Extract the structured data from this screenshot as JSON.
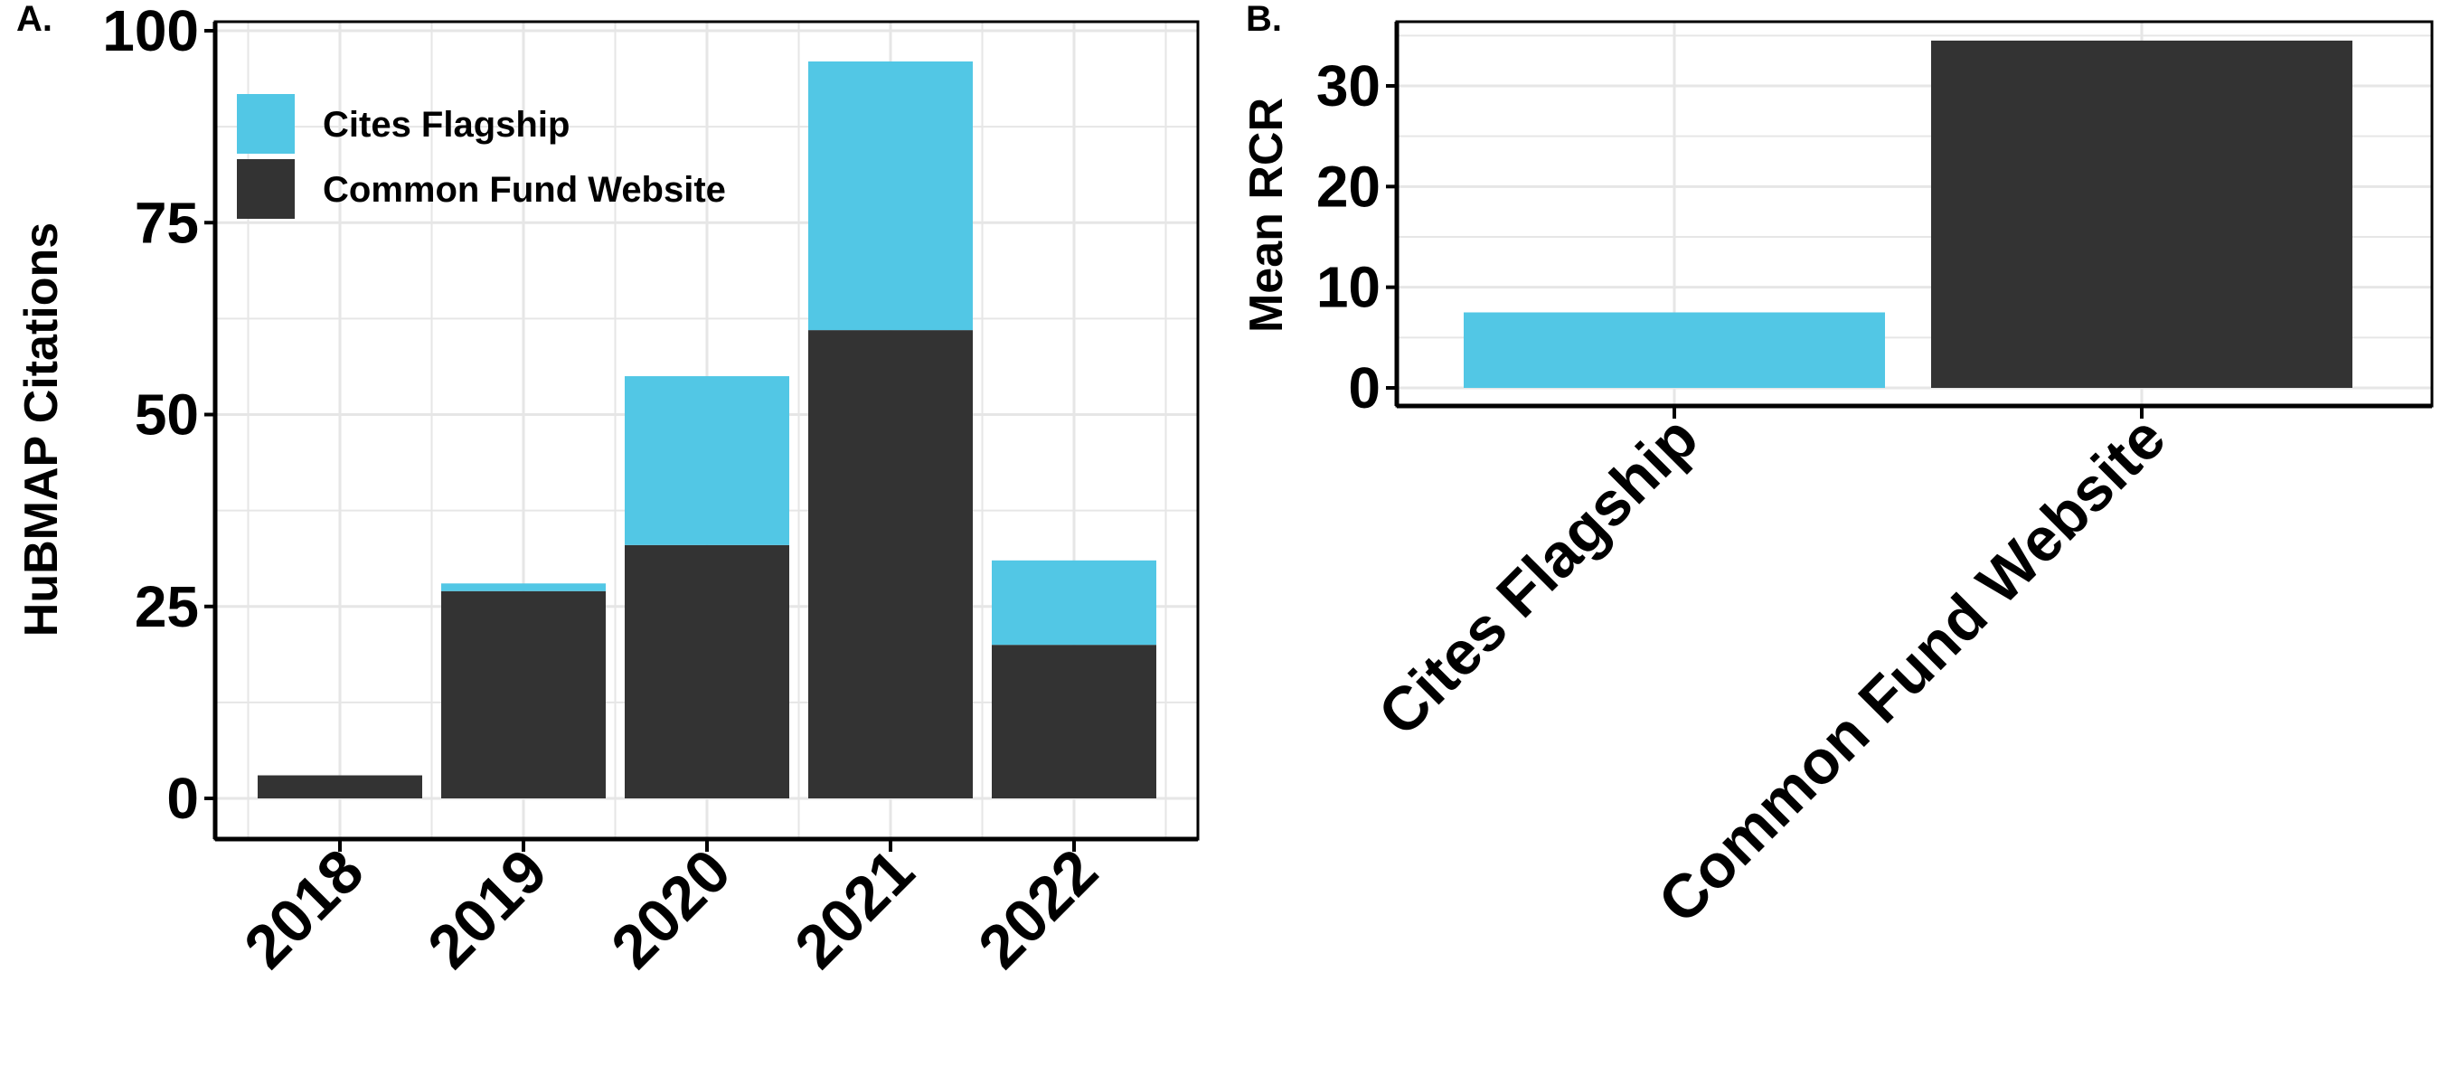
{
  "colors": {
    "cites_flagship": "#52c7e5",
    "common_fund_website": "#333333",
    "grid": "#e6e6e6"
  },
  "chart_data": [
    {
      "panel": "A.",
      "type": "bar",
      "stacked": true,
      "categories": [
        "2018",
        "2019",
        "2020",
        "2021",
        "2022"
      ],
      "series": [
        {
          "name": "Common Fund Website",
          "values": [
            3,
            27,
            33,
            61,
            20
          ]
        },
        {
          "name": "Cites Flagship",
          "values": [
            0,
            1,
            22,
            35,
            11
          ]
        }
      ],
      "ylabel": "HuBMAP Citations",
      "xlabel": "",
      "ylim": [
        0,
        100
      ],
      "yticks": [
        "0",
        "25",
        "50",
        "75",
        "100"
      ],
      "grid": true,
      "legend_position": "top-left"
    },
    {
      "panel": "B.",
      "type": "bar",
      "categories": [
        "Cites Flagship",
        "Common Fund Website"
      ],
      "values": [
        7.5,
        34.5
      ],
      "ylabel": "Mean RCR",
      "xlabel": "",
      "ylim": [
        0,
        35
      ],
      "yticks": [
        "0",
        "10",
        "20",
        "30"
      ],
      "grid": true
    }
  ]
}
